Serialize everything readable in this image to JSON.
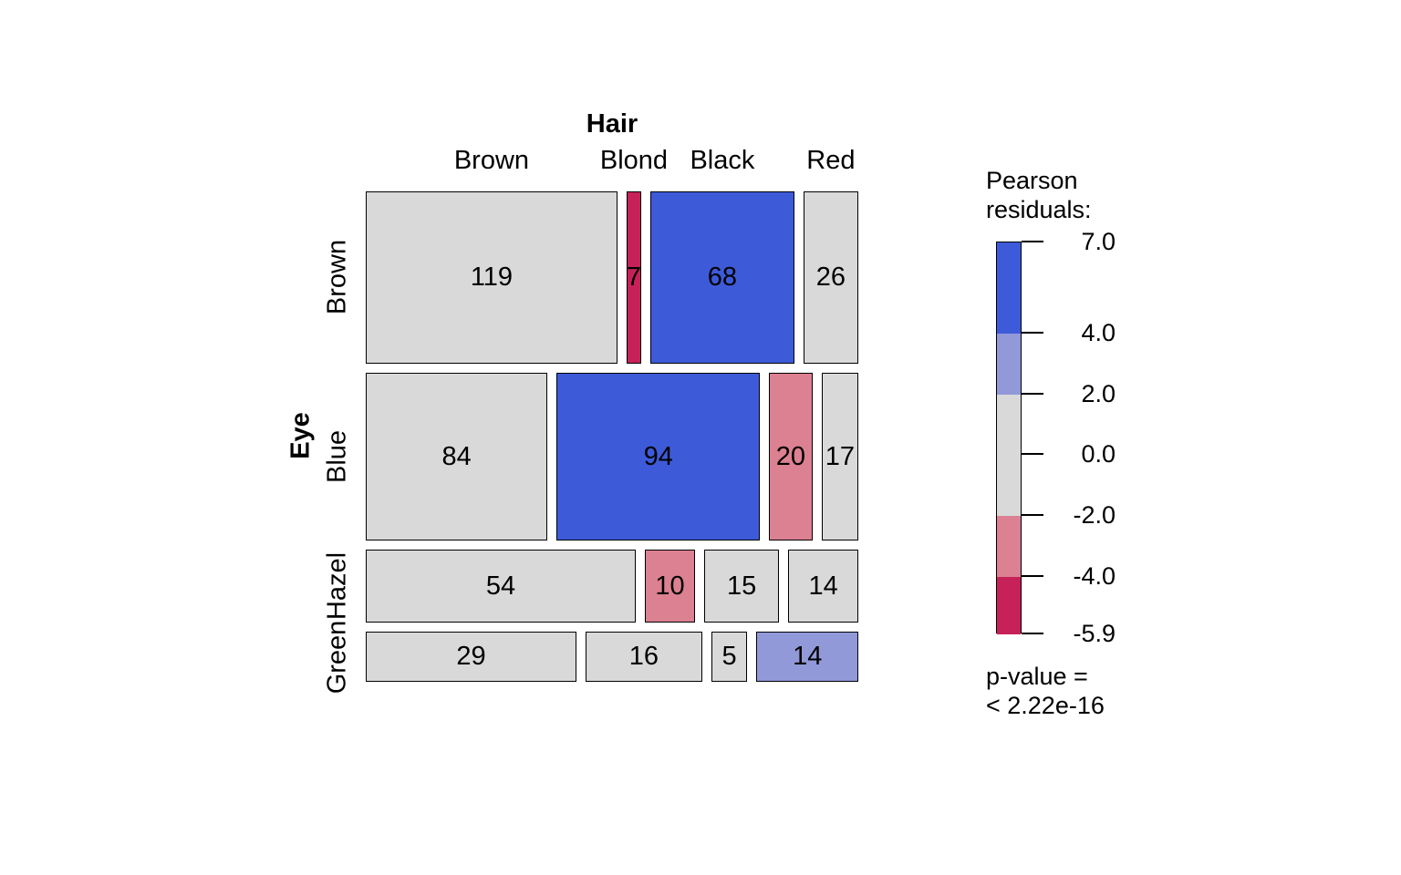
{
  "chart_data": {
    "type": "mosaic",
    "title": "Hair",
    "x_variable": "Hair",
    "y_variable": "Eye",
    "x_categories": [
      "Brown",
      "Blond",
      "Black",
      "Red"
    ],
    "y_categories": [
      "Brown",
      "Blue",
      "Hazel",
      "Green"
    ],
    "counts": [
      [
        119,
        7,
        68,
        26
      ],
      [
        84,
        94,
        20,
        17
      ],
      [
        54,
        10,
        15,
        14
      ],
      [
        29,
        16,
        5,
        14
      ]
    ],
    "residual_levels": [
      [
        "neutral",
        "strong-neg",
        "strong-pos",
        "neutral"
      ],
      [
        "neutral",
        "strong-pos",
        "mild-neg",
        "neutral"
      ],
      [
        "neutral",
        "mild-neg",
        "neutral",
        "neutral"
      ],
      [
        "neutral",
        "neutral",
        "neutral",
        "mild-pos"
      ]
    ],
    "shading_colors": {
      "strong-pos": "#3D5BD9",
      "mild-pos": "#9199D9",
      "neutral": "#D9D9D9",
      "mild-neg": "#DB8191",
      "strong-neg": "#C72159"
    },
    "legend": {
      "title_lines": [
        "Pearson",
        "residuals:"
      ],
      "domain_min": -5.9,
      "domain_max": 7.0,
      "ticks": [
        {
          "label": "7.0",
          "value": 7.0
        },
        {
          "label": "4.0",
          "value": 4.0
        },
        {
          "label": "2.0",
          "value": 2.0
        },
        {
          "label": "0.0",
          "value": 0.0
        },
        {
          "label": "-2.0",
          "value": -2.0
        },
        {
          "label": "-4.0",
          "value": -4.0
        },
        {
          "label": "-5.9",
          "value": -5.9
        }
      ],
      "segments": [
        {
          "from": 4.0,
          "to": 7.0,
          "level": "strong-pos"
        },
        {
          "from": 2.0,
          "to": 4.0,
          "level": "mild-pos"
        },
        {
          "from": -2.0,
          "to": 2.0,
          "level": "neutral"
        },
        {
          "from": -4.0,
          "to": -2.0,
          "level": "mild-neg"
        },
        {
          "from": -5.9,
          "to": -4.0,
          "level": "strong-neg"
        }
      ],
      "pvalue_lines": [
        "p-value =",
        "< 2.22e-16"
      ]
    }
  }
}
